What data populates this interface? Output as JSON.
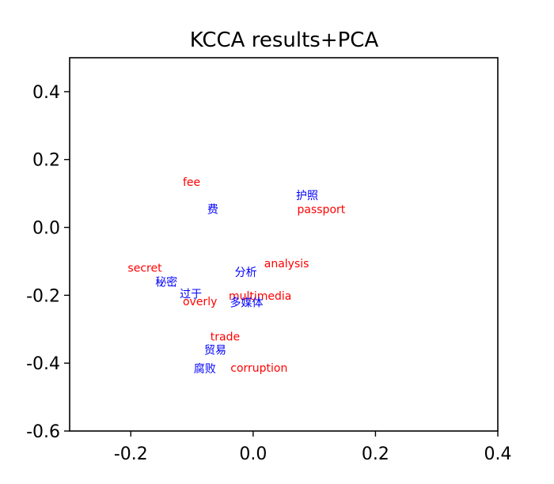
{
  "chart_data": {
    "type": "scatter",
    "title": "KCCA results+PCA",
    "xlabel": "",
    "ylabel": "",
    "xlim": [
      -0.3,
      0.4
    ],
    "ylim": [
      -0.6,
      0.5
    ],
    "x_ticks": [
      {
        "value": -0.2,
        "label": "-0.2"
      },
      {
        "value": 0.0,
        "label": "0.0"
      },
      {
        "value": 0.2,
        "label": "0.2"
      },
      {
        "value": 0.4,
        "label": "0.4"
      }
    ],
    "y_ticks": [
      {
        "value": 0.4,
        "label": "0.4"
      },
      {
        "value": 0.2,
        "label": "0.2"
      },
      {
        "value": 0.0,
        "label": "0.0"
      },
      {
        "value": -0.2,
        "label": "-0.2"
      },
      {
        "value": -0.4,
        "label": "-0.4"
      },
      {
        "value": -0.6,
        "label": "-0.6"
      }
    ],
    "grid": false,
    "colors": {
      "english": "#ff0000",
      "chinese": "#0000ff"
    },
    "points": [
      {
        "text": "fee",
        "x": -0.115,
        "y": 0.12,
        "lang": "english"
      },
      {
        "text": "费",
        "x": -0.075,
        "y": 0.04,
        "lang": "chinese"
      },
      {
        "text": "护照",
        "x": 0.07,
        "y": 0.08,
        "lang": "chinese"
      },
      {
        "text": "passport",
        "x": 0.072,
        "y": 0.04,
        "lang": "english"
      },
      {
        "text": "secret",
        "x": -0.205,
        "y": -0.133,
        "lang": "english"
      },
      {
        "text": "秘密",
        "x": -0.16,
        "y": -0.175,
        "lang": "chinese"
      },
      {
        "text": "analysis",
        "x": 0.018,
        "y": -0.12,
        "lang": "english"
      },
      {
        "text": "分析",
        "x": -0.03,
        "y": -0.145,
        "lang": "chinese"
      },
      {
        "text": "过于",
        "x": -0.12,
        "y": -0.21,
        "lang": "chinese"
      },
      {
        "text": "overly",
        "x": -0.115,
        "y": -0.232,
        "lang": "english"
      },
      {
        "text": "multimedia",
        "x": -0.04,
        "y": -0.215,
        "lang": "english"
      },
      {
        "text": "多媒体",
        "x": -0.038,
        "y": -0.235,
        "lang": "chinese"
      },
      {
        "text": "trade",
        "x": -0.07,
        "y": -0.335,
        "lang": "english"
      },
      {
        "text": "贸易",
        "x": -0.08,
        "y": -0.375,
        "lang": "chinese"
      },
      {
        "text": "corruption",
        "x": -0.037,
        "y": -0.428,
        "lang": "english"
      },
      {
        "text": "腐败",
        "x": -0.097,
        "y": -0.43,
        "lang": "chinese"
      }
    ]
  }
}
